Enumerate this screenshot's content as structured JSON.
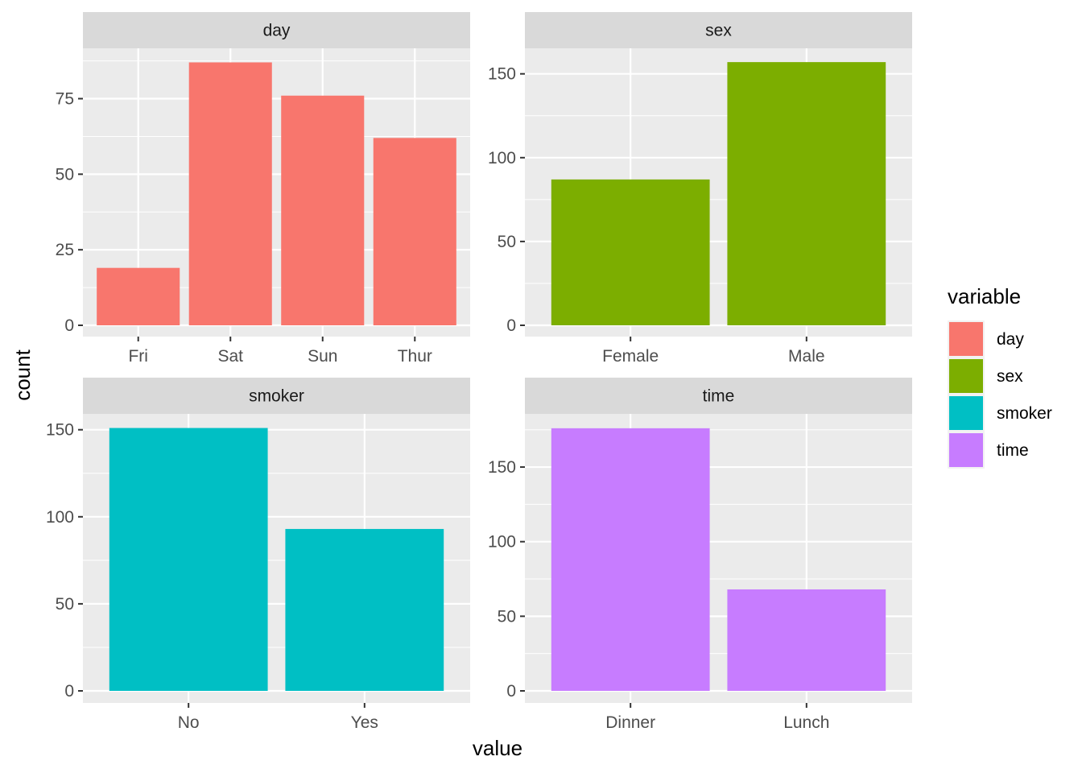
{
  "chart_data": {
    "type": "bar",
    "xlabel": "value",
    "ylabel": "count",
    "grid": true,
    "legend": {
      "title": "variable",
      "placement": "right",
      "entries": [
        {
          "label": "day",
          "color": "#F8766D"
        },
        {
          "label": "sex",
          "color": "#7CAE00"
        },
        {
          "label": "smoker",
          "color": "#00BFC4"
        },
        {
          "label": "time",
          "color": "#C77CFF"
        }
      ]
    },
    "facets": [
      {
        "title": "day",
        "color": "#F8766D",
        "categories": [
          "Fri",
          "Sat",
          "Sun",
          "Thur"
        ],
        "values": [
          19,
          87,
          76,
          62
        ],
        "ylim": [
          0,
          93
        ],
        "yticks": [
          0,
          25,
          50,
          75
        ],
        "yticklabels": [
          "0",
          "25",
          "50",
          "75"
        ]
      },
      {
        "title": "sex",
        "color": "#7CAE00",
        "categories": [
          "Female",
          "Male"
        ],
        "values": [
          87,
          157
        ],
        "ylim": [
          0,
          172
        ],
        "yticks": [
          0,
          50,
          100,
          150
        ],
        "yticklabels": [
          "0",
          "50",
          "100",
          "150"
        ]
      },
      {
        "title": "smoker",
        "color": "#00BFC4",
        "categories": [
          "No",
          "Yes"
        ],
        "values": [
          151,
          93
        ],
        "ylim": [
          0,
          158
        ],
        "yticks": [
          0,
          50,
          100,
          150
        ],
        "yticklabels": [
          "0",
          "50",
          "100",
          "150"
        ]
      },
      {
        "title": "time",
        "color": "#C77CFF",
        "categories": [
          "Dinner",
          "Lunch"
        ],
        "values": [
          176,
          68
        ],
        "ylim": [
          0,
          185
        ],
        "yticks": [
          0,
          50,
          100,
          150
        ],
        "yticklabels": [
          "0",
          "50",
          "100",
          "150"
        ]
      }
    ]
  }
}
